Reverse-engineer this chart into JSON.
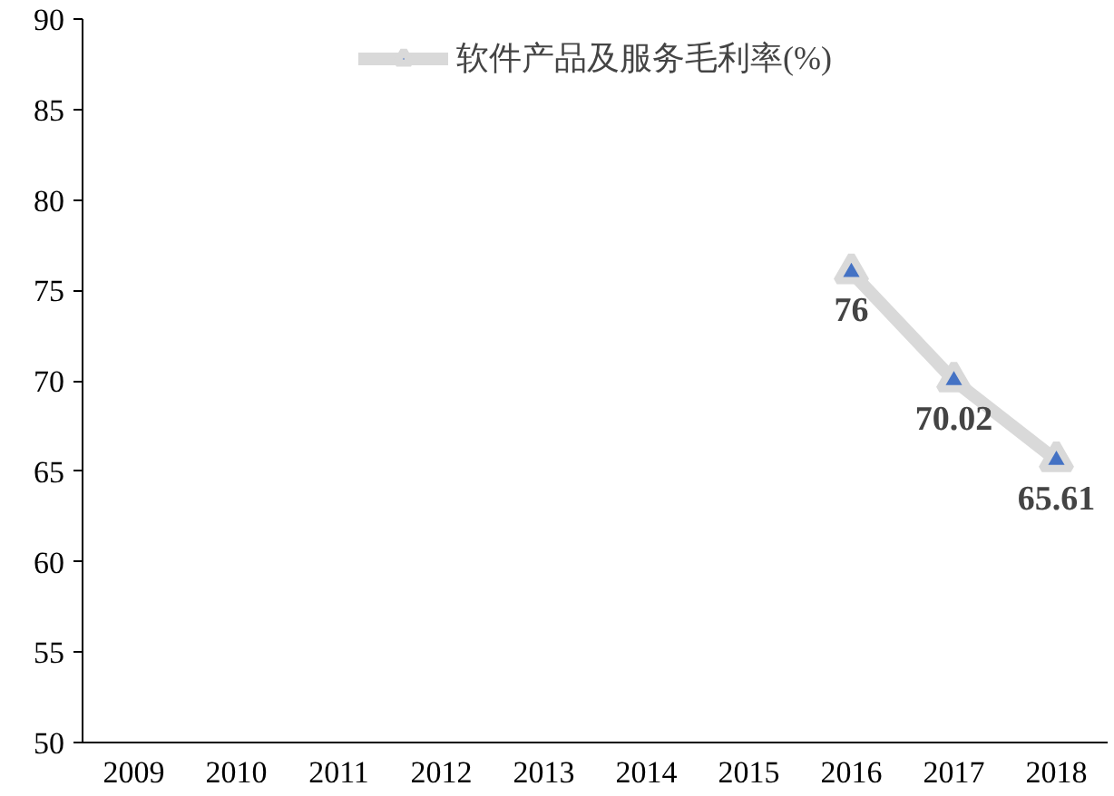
{
  "chart_data": {
    "type": "line",
    "categories": [
      "2009",
      "2010",
      "2011",
      "2012",
      "2013",
      "2014",
      "2015",
      "2016",
      "2017",
      "2018"
    ],
    "series": [
      {
        "name": "软件产品及服务毛利率(%)",
        "color": "#d9d9d9",
        "values": [
          null,
          null,
          null,
          null,
          null,
          null,
          null,
          76,
          70.02,
          65.61
        ]
      }
    ],
    "ylim": [
      50,
      90
    ],
    "yticks": [
      50,
      55,
      60,
      65,
      70,
      75,
      80,
      85,
      90
    ],
    "grid": false,
    "legend": "top",
    "marker": "triangle",
    "line_style": "solid",
    "data_labels": true
  }
}
